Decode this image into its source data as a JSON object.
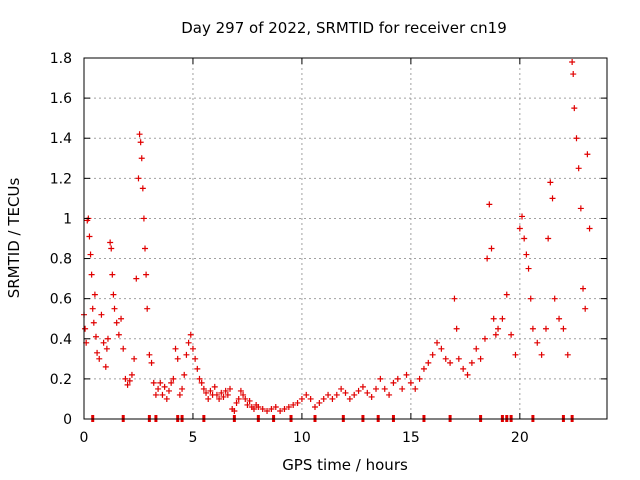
{
  "chart_data": {
    "type": "scatter",
    "title": "Day 297 of 2022, SRMTID for receiver cn19",
    "xlabel": "GPS time / hours",
    "ylabel": "SRMTID / TECUs",
    "xlim": [
      0,
      24
    ],
    "ylim": [
      0,
      1.8
    ],
    "x_ticks": [
      0,
      5,
      10,
      15,
      20
    ],
    "x_tick_labels": [
      "0",
      "5",
      "10",
      "15",
      "20"
    ],
    "y_ticks": [
      0,
      0.2,
      0.4,
      0.6,
      0.8,
      1.0,
      1.2,
      1.4,
      1.6,
      1.8
    ],
    "y_tick_labels": [
      "0",
      "0.2",
      "0.4",
      "0.6",
      "0.8",
      "1",
      "1.2",
      "1.4",
      "1.6",
      "1.8"
    ],
    "grid": true,
    "marker": "+",
    "color": "#e00000",
    "series": [
      {
        "name": "SRMTID",
        "points": [
          [
            0.0,
            0.52
          ],
          [
            0.05,
            0.45
          ],
          [
            0.1,
            0.38
          ],
          [
            0.15,
            0.99
          ],
          [
            0.2,
            1.0
          ],
          [
            0.25,
            0.91
          ],
          [
            0.3,
            0.82
          ],
          [
            0.35,
            0.72
          ],
          [
            0.4,
            0.55
          ],
          [
            0.45,
            0.48
          ],
          [
            0.5,
            0.62
          ],
          [
            0.55,
            0.41
          ],
          [
            0.6,
            0.33
          ],
          [
            0.7,
            0.3
          ],
          [
            0.8,
            0.52
          ],
          [
            0.9,
            0.38
          ],
          [
            1.0,
            0.26
          ],
          [
            1.05,
            0.35
          ],
          [
            1.1,
            0.4
          ],
          [
            1.2,
            0.88
          ],
          [
            1.25,
            0.85
          ],
          [
            1.3,
            0.72
          ],
          [
            1.35,
            0.62
          ],
          [
            1.4,
            0.55
          ],
          [
            1.5,
            0.48
          ],
          [
            1.6,
            0.42
          ],
          [
            1.7,
            0.5
          ],
          [
            1.8,
            0.35
          ],
          [
            1.9,
            0.2
          ],
          [
            2.0,
            0.17
          ],
          [
            2.1,
            0.19
          ],
          [
            2.2,
            0.22
          ],
          [
            2.3,
            0.3
          ],
          [
            2.4,
            0.7
          ],
          [
            2.5,
            1.2
          ],
          [
            2.55,
            1.42
          ],
          [
            2.6,
            1.38
          ],
          [
            2.65,
            1.3
          ],
          [
            2.7,
            1.15
          ],
          [
            2.75,
            1.0
          ],
          [
            2.8,
            0.85
          ],
          [
            2.85,
            0.72
          ],
          [
            2.9,
            0.55
          ],
          [
            3.0,
            0.32
          ],
          [
            3.1,
            0.28
          ],
          [
            3.2,
            0.18
          ],
          [
            3.3,
            0.12
          ],
          [
            3.4,
            0.15
          ],
          [
            3.5,
            0.18
          ],
          [
            3.6,
            0.12
          ],
          [
            3.7,
            0.16
          ],
          [
            3.8,
            0.1
          ],
          [
            3.9,
            0.14
          ],
          [
            4.0,
            0.18
          ],
          [
            4.1,
            0.2
          ],
          [
            4.2,
            0.35
          ],
          [
            4.3,
            0.3
          ],
          [
            4.4,
            0.12
          ],
          [
            4.5,
            0.15
          ],
          [
            4.6,
            0.22
          ],
          [
            4.7,
            0.32
          ],
          [
            4.8,
            0.38
          ],
          [
            4.9,
            0.42
          ],
          [
            5.0,
            0.35
          ],
          [
            5.1,
            0.3
          ],
          [
            5.2,
            0.25
          ],
          [
            5.3,
            0.2
          ],
          [
            5.4,
            0.18
          ],
          [
            5.5,
            0.15
          ],
          [
            5.6,
            0.13
          ],
          [
            5.7,
            0.1
          ],
          [
            5.8,
            0.14
          ],
          [
            5.9,
            0.12
          ],
          [
            6.0,
            0.16
          ],
          [
            6.1,
            0.12
          ],
          [
            6.2,
            0.1
          ],
          [
            6.3,
            0.13
          ],
          [
            6.4,
            0.11
          ],
          [
            6.5,
            0.14
          ],
          [
            6.6,
            0.12
          ],
          [
            6.7,
            0.15
          ],
          [
            6.8,
            0.05
          ],
          [
            6.9,
            0.04
          ],
          [
            7.0,
            0.08
          ],
          [
            7.1,
            0.1
          ],
          [
            7.2,
            0.14
          ],
          [
            7.3,
            0.12
          ],
          [
            7.4,
            0.1
          ],
          [
            7.5,
            0.07
          ],
          [
            7.6,
            0.09
          ],
          [
            7.7,
            0.06
          ],
          [
            7.8,
            0.05
          ],
          [
            7.9,
            0.07
          ],
          [
            8.0,
            0.06
          ],
          [
            8.2,
            0.05
          ],
          [
            8.4,
            0.04
          ],
          [
            8.6,
            0.05
          ],
          [
            8.8,
            0.06
          ],
          [
            9.0,
            0.04
          ],
          [
            9.2,
            0.05
          ],
          [
            9.4,
            0.06
          ],
          [
            9.6,
            0.07
          ],
          [
            9.8,
            0.08
          ],
          [
            10.0,
            0.1
          ],
          [
            10.2,
            0.12
          ],
          [
            10.4,
            0.1
          ],
          [
            10.6,
            0.06
          ],
          [
            10.8,
            0.08
          ],
          [
            11.0,
            0.1
          ],
          [
            11.2,
            0.12
          ],
          [
            11.4,
            0.1
          ],
          [
            11.6,
            0.12
          ],
          [
            11.8,
            0.15
          ],
          [
            12.0,
            0.13
          ],
          [
            12.2,
            0.1
          ],
          [
            12.4,
            0.12
          ],
          [
            12.6,
            0.14
          ],
          [
            12.8,
            0.16
          ],
          [
            13.0,
            0.13
          ],
          [
            13.2,
            0.11
          ],
          [
            13.4,
            0.15
          ],
          [
            13.6,
            0.2
          ],
          [
            13.8,
            0.15
          ],
          [
            14.0,
            0.12
          ],
          [
            14.2,
            0.18
          ],
          [
            14.4,
            0.2
          ],
          [
            14.6,
            0.15
          ],
          [
            14.8,
            0.22
          ],
          [
            15.0,
            0.18
          ],
          [
            15.2,
            0.15
          ],
          [
            15.4,
            0.2
          ],
          [
            15.6,
            0.25
          ],
          [
            15.8,
            0.28
          ],
          [
            16.0,
            0.32
          ],
          [
            16.2,
            0.38
          ],
          [
            16.4,
            0.35
          ],
          [
            16.6,
            0.3
          ],
          [
            16.8,
            0.28
          ],
          [
            17.0,
            0.6
          ],
          [
            17.1,
            0.45
          ],
          [
            17.2,
            0.3
          ],
          [
            17.4,
            0.25
          ],
          [
            17.6,
            0.22
          ],
          [
            17.8,
            0.28
          ],
          [
            18.0,
            0.35
          ],
          [
            18.2,
            0.3
          ],
          [
            18.4,
            0.4
          ],
          [
            18.5,
            0.8
          ],
          [
            18.6,
            1.07
          ],
          [
            18.7,
            0.85
          ],
          [
            18.8,
            0.5
          ],
          [
            18.9,
            0.42
          ],
          [
            19.0,
            0.45
          ],
          [
            19.2,
            0.5
          ],
          [
            19.4,
            0.62
          ],
          [
            19.6,
            0.42
          ],
          [
            19.8,
            0.32
          ],
          [
            20.0,
            0.95
          ],
          [
            20.1,
            1.01
          ],
          [
            20.2,
            0.9
          ],
          [
            20.3,
            0.82
          ],
          [
            20.4,
            0.75
          ],
          [
            20.5,
            0.6
          ],
          [
            20.6,
            0.45
          ],
          [
            20.8,
            0.38
          ],
          [
            21.0,
            0.32
          ],
          [
            21.2,
            0.45
          ],
          [
            21.3,
            0.9
          ],
          [
            21.4,
            1.18
          ],
          [
            21.5,
            1.1
          ],
          [
            21.6,
            0.6
          ],
          [
            21.8,
            0.5
          ],
          [
            22.0,
            0.45
          ],
          [
            22.2,
            0.32
          ],
          [
            22.4,
            1.78
          ],
          [
            22.45,
            1.72
          ],
          [
            22.5,
            1.55
          ],
          [
            22.6,
            1.4
          ],
          [
            22.7,
            1.25
          ],
          [
            22.8,
            1.05
          ],
          [
            22.9,
            0.65
          ],
          [
            23.0,
            0.55
          ],
          [
            23.1,
            1.32
          ],
          [
            23.2,
            0.95
          ]
        ]
      }
    ],
    "gap_marks_x": [
      0.4,
      1.8,
      3.0,
      3.3,
      4.3,
      4.5,
      5.5,
      6.9,
      8.0,
      8.7,
      9.5,
      10.6,
      11.9,
      12.8,
      13.5,
      14.2,
      15.6,
      16.8,
      18.2,
      19.2,
      19.4,
      19.6,
      20.6,
      22.0,
      22.4
    ]
  }
}
